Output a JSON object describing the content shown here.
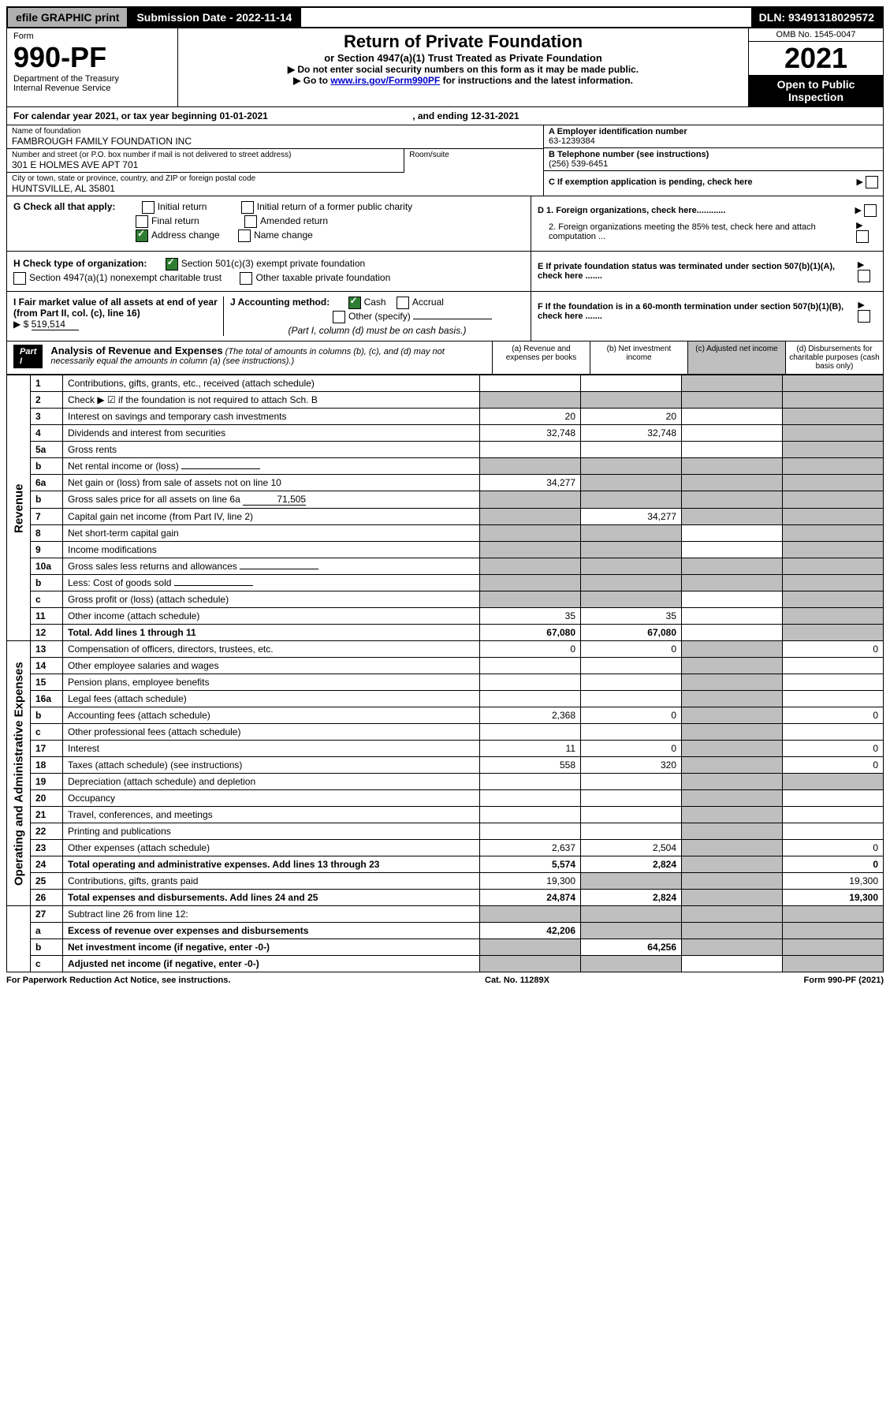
{
  "topbar": {
    "efile": "efile GRAPHIC print",
    "submission": "Submission Date - 2022-11-14",
    "dln": "DLN: 93491318029572"
  },
  "header": {
    "form_label": "Form",
    "form_num": "990-PF",
    "dept1": "Department of the Treasury",
    "dept2": "Internal Revenue Service",
    "title1": "Return of Private Foundation",
    "title2": "or Section 4947(a)(1) Trust Treated as Private Foundation",
    "instr1": "▶ Do not enter social security numbers on this form as it may be made public.",
    "instr2_pre": "▶ Go to ",
    "instr2_link": "www.irs.gov/Form990PF",
    "instr2_post": " for instructions and the latest information.",
    "omb": "OMB No. 1545-0047",
    "year": "2021",
    "open": "Open to Public Inspection"
  },
  "cal_year": {
    "pre": "For calendar year 2021, or tax year beginning ",
    "begin": "01-01-2021",
    "mid": ", and ending ",
    "end": "12-31-2021"
  },
  "info": {
    "name_label": "Name of foundation",
    "name": "FAMBROUGH FAMILY FOUNDATION INC",
    "addr_label": "Number and street (or P.O. box number if mail is not delivered to street address)",
    "addr": "301 E HOLMES AVE APT 701",
    "room_label": "Room/suite",
    "city_label": "City or town, state or province, country, and ZIP or foreign postal code",
    "city": "HUNTSVILLE, AL  35801",
    "ein_label": "A Employer identification number",
    "ein": "63-1239384",
    "phone_label": "B Telephone number (see instructions)",
    "phone": "(256) 539-6451",
    "c_label": "C If exemption application is pending, check here"
  },
  "g": {
    "label": "G Check all that apply:",
    "initial": "Initial return",
    "final": "Final return",
    "addr_change": "Address change",
    "initial_former": "Initial return of a former public charity",
    "amended": "Amended return",
    "name_change": "Name change"
  },
  "h": {
    "label": "H Check type of organization:",
    "501c3": "Section 501(c)(3) exempt private foundation",
    "4947": "Section 4947(a)(1) nonexempt charitable trust",
    "other_tax": "Other taxable private foundation"
  },
  "i": {
    "label": "I Fair market value of all assets at end of year (from Part II, col. (c), line 16)",
    "arrow": "▶ $",
    "val": "519,514"
  },
  "j": {
    "label": "J Accounting method:",
    "cash": "Cash",
    "accrual": "Accrual",
    "other": "Other (specify)",
    "note": "(Part I, column (d) must be on cash basis.)"
  },
  "d": {
    "d1": "D 1. Foreign organizations, check here............",
    "d2": "2. Foreign organizations meeting the 85% test, check here and attach computation ..."
  },
  "e": "E  If private foundation status was terminated under section 507(b)(1)(A), check here .......",
  "f": "F  If the foundation is in a 60-month termination under section 507(b)(1)(B), check here .......",
  "part1": {
    "tag": "Part I",
    "title": "Analysis of Revenue and Expenses",
    "note": "(The total of amounts in columns (b), (c), and (d) may not necessarily equal the amounts in column (a) (see instructions).)",
    "col_a": "(a) Revenue and expenses per books",
    "col_b": "(b) Net investment income",
    "col_c": "(c) Adjusted net income",
    "col_d": "(d) Disbursements for charitable purposes (cash basis only)"
  },
  "side": {
    "revenue": "Revenue",
    "expenses": "Operating and Administrative Expenses"
  },
  "rows": [
    {
      "n": "1",
      "desc": "Contributions, gifts, grants, etc., received (attach schedule)",
      "a": "",
      "b": "",
      "c": "shade",
      "d": "shade"
    },
    {
      "n": "2",
      "desc": "Check ▶ ☑ if the foundation is not required to attach Sch. B",
      "a": "shade",
      "b": "shade",
      "c": "shade",
      "d": "shade",
      "bold_not": true
    },
    {
      "n": "3",
      "desc": "Interest on savings and temporary cash investments",
      "a": "20",
      "b": "20",
      "c": "",
      "d": "shade"
    },
    {
      "n": "4",
      "desc": "Dividends and interest from securities",
      "a": "32,748",
      "b": "32,748",
      "c": "",
      "d": "shade"
    },
    {
      "n": "5a",
      "desc": "Gross rents",
      "a": "",
      "b": "",
      "c": "",
      "d": "shade"
    },
    {
      "n": "b",
      "desc": "Net rental income or (loss)",
      "a": "shade",
      "b": "shade",
      "c": "shade",
      "d": "shade",
      "inline_box": true
    },
    {
      "n": "6a",
      "desc": "Net gain or (loss) from sale of assets not on line 10",
      "a": "34,277",
      "b": "shade",
      "c": "shade",
      "d": "shade"
    },
    {
      "n": "b",
      "desc": "Gross sales price for all assets on line 6a",
      "a": "shade",
      "b": "shade",
      "c": "shade",
      "d": "shade",
      "inline_val": "71,505"
    },
    {
      "n": "7",
      "desc": "Capital gain net income (from Part IV, line 2)",
      "a": "shade",
      "b": "34,277",
      "c": "shade",
      "d": "shade"
    },
    {
      "n": "8",
      "desc": "Net short-term capital gain",
      "a": "shade",
      "b": "shade",
      "c": "",
      "d": "shade"
    },
    {
      "n": "9",
      "desc": "Income modifications",
      "a": "shade",
      "b": "shade",
      "c": "",
      "d": "shade"
    },
    {
      "n": "10a",
      "desc": "Gross sales less returns and allowances",
      "a": "shade",
      "b": "shade",
      "c": "shade",
      "d": "shade",
      "inline_box": true
    },
    {
      "n": "b",
      "desc": "Less: Cost of goods sold",
      "a": "shade",
      "b": "shade",
      "c": "shade",
      "d": "shade",
      "inline_box": true
    },
    {
      "n": "c",
      "desc": "Gross profit or (loss) (attach schedule)",
      "a": "shade",
      "b": "shade",
      "c": "",
      "d": "shade"
    },
    {
      "n": "11",
      "desc": "Other income (attach schedule)",
      "a": "35",
      "b": "35",
      "c": "",
      "d": "shade"
    },
    {
      "n": "12",
      "desc": "Total. Add lines 1 through 11",
      "a": "67,080",
      "b": "67,080",
      "c": "",
      "d": "shade",
      "bold": true
    }
  ],
  "exp_rows": [
    {
      "n": "13",
      "desc": "Compensation of officers, directors, trustees, etc.",
      "a": "0",
      "b": "0",
      "c": "shade",
      "d": "0"
    },
    {
      "n": "14",
      "desc": "Other employee salaries and wages",
      "a": "",
      "b": "",
      "c": "shade",
      "d": ""
    },
    {
      "n": "15",
      "desc": "Pension plans, employee benefits",
      "a": "",
      "b": "",
      "c": "shade",
      "d": ""
    },
    {
      "n": "16a",
      "desc": "Legal fees (attach schedule)",
      "a": "",
      "b": "",
      "c": "shade",
      "d": ""
    },
    {
      "n": "b",
      "desc": "Accounting fees (attach schedule)",
      "a": "2,368",
      "b": "0",
      "c": "shade",
      "d": "0"
    },
    {
      "n": "c",
      "desc": "Other professional fees (attach schedule)",
      "a": "",
      "b": "",
      "c": "shade",
      "d": ""
    },
    {
      "n": "17",
      "desc": "Interest",
      "a": "11",
      "b": "0",
      "c": "shade",
      "d": "0"
    },
    {
      "n": "18",
      "desc": "Taxes (attach schedule) (see instructions)",
      "a": "558",
      "b": "320",
      "c": "shade",
      "d": "0"
    },
    {
      "n": "19",
      "desc": "Depreciation (attach schedule) and depletion",
      "a": "",
      "b": "",
      "c": "shade",
      "d": "shade"
    },
    {
      "n": "20",
      "desc": "Occupancy",
      "a": "",
      "b": "",
      "c": "shade",
      "d": ""
    },
    {
      "n": "21",
      "desc": "Travel, conferences, and meetings",
      "a": "",
      "b": "",
      "c": "shade",
      "d": ""
    },
    {
      "n": "22",
      "desc": "Printing and publications",
      "a": "",
      "b": "",
      "c": "shade",
      "d": ""
    },
    {
      "n": "23",
      "desc": "Other expenses (attach schedule)",
      "a": "2,637",
      "b": "2,504",
      "c": "shade",
      "d": "0"
    },
    {
      "n": "24",
      "desc": "Total operating and administrative expenses. Add lines 13 through 23",
      "a": "5,574",
      "b": "2,824",
      "c": "shade",
      "d": "0",
      "bold": true
    },
    {
      "n": "25",
      "desc": "Contributions, gifts, grants paid",
      "a": "19,300",
      "b": "shade",
      "c": "shade",
      "d": "19,300"
    },
    {
      "n": "26",
      "desc": "Total expenses and disbursements. Add lines 24 and 25",
      "a": "24,874",
      "b": "2,824",
      "c": "shade",
      "d": "19,300",
      "bold": true
    }
  ],
  "bottom_rows": [
    {
      "n": "27",
      "desc": "Subtract line 26 from line 12:",
      "a": "shade",
      "b": "shade",
      "c": "shade",
      "d": "shade"
    },
    {
      "n": "a",
      "desc": "Excess of revenue over expenses and disbursements",
      "a": "42,206",
      "b": "shade",
      "c": "shade",
      "d": "shade",
      "bold": true
    },
    {
      "n": "b",
      "desc": "Net investment income (if negative, enter -0-)",
      "a": "shade",
      "b": "64,256",
      "c": "shade",
      "d": "shade",
      "bold": true
    },
    {
      "n": "c",
      "desc": "Adjusted net income (if negative, enter -0-)",
      "a": "shade",
      "b": "shade",
      "c": "",
      "d": "shade",
      "bold": true
    }
  ],
  "footer": {
    "left": "For Paperwork Reduction Act Notice, see instructions.",
    "mid": "Cat. No. 11289X",
    "right": "Form 990-PF (2021)"
  }
}
